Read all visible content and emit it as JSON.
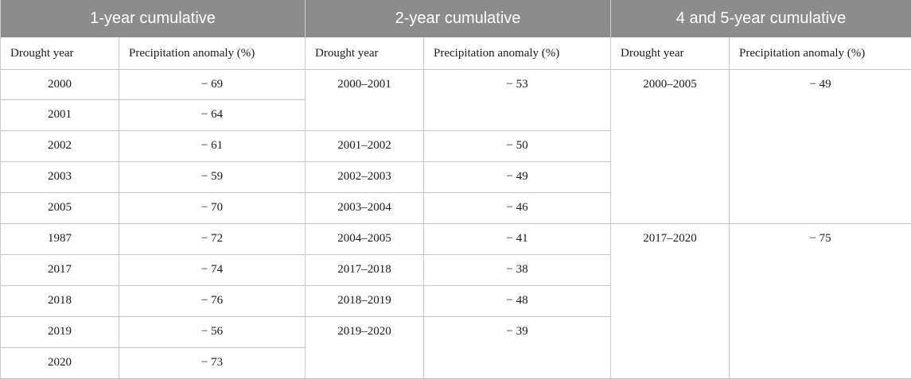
{
  "groups": [
    "1-year cumulative",
    "2-year cumulative",
    "4 and 5-year cumulative"
  ],
  "subheaders": {
    "drought_year": "Drought year",
    "precip_anomaly": "Precipitation anomaly (%)"
  },
  "one_year": [
    {
      "year": "2000",
      "anomaly": "− 69"
    },
    {
      "year": "2001",
      "anomaly": "− 64"
    },
    {
      "year": "2002",
      "anomaly": "− 61"
    },
    {
      "year": "2003",
      "anomaly": "− 59"
    },
    {
      "year": "2005",
      "anomaly": "− 70"
    },
    {
      "year": "1987",
      "anomaly": "− 72"
    },
    {
      "year": "2017",
      "anomaly": "− 74"
    },
    {
      "year": "2018",
      "anomaly": "− 76"
    },
    {
      "year": "2019",
      "anomaly": "− 56"
    },
    {
      "year": "2020",
      "anomaly": "− 73"
    }
  ],
  "two_year": [
    {
      "year": "2000–2001",
      "anomaly": "− 53"
    },
    {
      "year": "2001–2002",
      "anomaly": "− 50"
    },
    {
      "year": "2002–2003",
      "anomaly": "− 49"
    },
    {
      "year": "2003–2004",
      "anomaly": "− 46"
    },
    {
      "year": "2004–2005",
      "anomaly": "− 41"
    },
    {
      "year": "2017–2018",
      "anomaly": "− 38"
    },
    {
      "year": "2018–2019",
      "anomaly": "− 48"
    },
    {
      "year": "2019–2020",
      "anomaly": "− 39"
    }
  ],
  "four_five_year": [
    {
      "year": "2000–2005",
      "anomaly": "− 49"
    },
    {
      "year": "2017–2020",
      "anomaly": "− 75"
    }
  ]
}
